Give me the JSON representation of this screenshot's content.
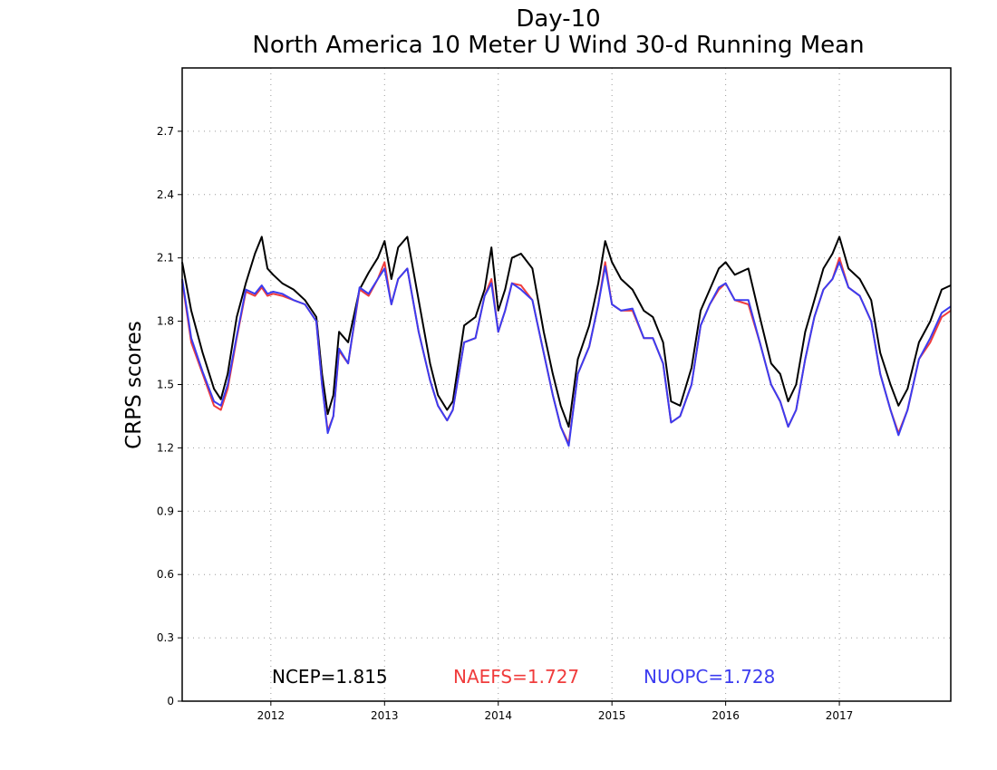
{
  "chart_data": {
    "type": "line",
    "title": "Day-10",
    "subtitle": "North America 10 Meter U Wind 30-d Running Mean",
    "xlabel": "",
    "ylabel": "CRPS scores",
    "xlim": [
      2011.22,
      2017.98
    ],
    "ylim": [
      0,
      3.0
    ],
    "y_ticks": [
      "0",
      "0.3",
      "0.6",
      "0.9",
      "1.2",
      "1.5",
      "1.8",
      "2.1",
      "2.4",
      "2.7"
    ],
    "x_ticks": [
      "2012",
      "2013",
      "2014",
      "2015",
      "2016",
      "2017"
    ],
    "grid": true,
    "legend_placement": "bottom-center",
    "x": [
      2011.22,
      2011.3,
      2011.4,
      2011.5,
      2011.56,
      2011.62,
      2011.7,
      2011.78,
      2011.86,
      2011.92,
      2011.97,
      2012.02,
      2012.1,
      2012.2,
      2012.3,
      2012.4,
      2012.45,
      2012.5,
      2012.55,
      2012.6,
      2012.68,
      2012.78,
      2012.86,
      2012.94,
      2013.0,
      2013.06,
      2013.12,
      2013.2,
      2013.3,
      2013.4,
      2013.47,
      2013.55,
      2013.6,
      2013.7,
      2013.8,
      2013.88,
      2013.94,
      2014.0,
      2014.06,
      2014.12,
      2014.2,
      2014.3,
      2014.4,
      2014.48,
      2014.55,
      2014.62,
      2014.7,
      2014.8,
      2014.88,
      2014.94,
      2015.0,
      2015.08,
      2015.18,
      2015.28,
      2015.36,
      2015.45,
      2015.52,
      2015.6,
      2015.7,
      2015.78,
      2015.86,
      2015.94,
      2016.0,
      2016.08,
      2016.2,
      2016.3,
      2016.4,
      2016.48,
      2016.55,
      2016.62,
      2016.7,
      2016.78,
      2016.86,
      2016.94,
      2017.0,
      2017.08,
      2017.18,
      2017.28,
      2017.36,
      2017.45,
      2017.52,
      2017.6,
      2017.7,
      2017.8,
      2017.9,
      2017.98
    ],
    "series": [
      {
        "name": "NCEP",
        "color": "#000000",
        "values": [
          2.08,
          1.85,
          1.65,
          1.48,
          1.43,
          1.55,
          1.82,
          1.98,
          2.12,
          2.2,
          2.05,
          2.02,
          1.98,
          1.95,
          1.9,
          1.82,
          1.55,
          1.36,
          1.45,
          1.75,
          1.7,
          1.95,
          2.03,
          2.1,
          2.18,
          2.0,
          2.15,
          2.2,
          1.9,
          1.6,
          1.45,
          1.38,
          1.42,
          1.78,
          1.82,
          1.95,
          2.15,
          1.85,
          1.95,
          2.1,
          2.12,
          2.05,
          1.75,
          1.55,
          1.4,
          1.3,
          1.62,
          1.78,
          1.98,
          2.18,
          2.08,
          2.0,
          1.95,
          1.85,
          1.82,
          1.7,
          1.42,
          1.4,
          1.58,
          1.85,
          1.95,
          2.05,
          2.08,
          2.02,
          2.05,
          1.82,
          1.6,
          1.55,
          1.42,
          1.5,
          1.75,
          1.9,
          2.05,
          2.12,
          2.2,
          2.05,
          2.0,
          1.9,
          1.65,
          1.5,
          1.4,
          1.48,
          1.7,
          1.8,
          1.95,
          1.97
        ]
      },
      {
        "name": "NAEFS",
        "color": "#f03c3c",
        "values": [
          1.99,
          1.7,
          1.55,
          1.4,
          1.38,
          1.48,
          1.72,
          1.94,
          1.92,
          1.96,
          1.92,
          1.93,
          1.92,
          1.9,
          1.88,
          1.8,
          1.5,
          1.28,
          1.35,
          1.66,
          1.6,
          1.95,
          1.92,
          2.0,
          2.08,
          1.88,
          2.0,
          2.05,
          1.75,
          1.52,
          1.4,
          1.33,
          1.38,
          1.7,
          1.72,
          1.92,
          2.0,
          1.75,
          1.85,
          1.98,
          1.97,
          1.9,
          1.65,
          1.45,
          1.3,
          1.22,
          1.55,
          1.68,
          1.88,
          2.08,
          1.88,
          1.85,
          1.85,
          1.72,
          1.72,
          1.6,
          1.32,
          1.35,
          1.5,
          1.78,
          1.88,
          1.95,
          1.98,
          1.9,
          1.88,
          1.7,
          1.5,
          1.42,
          1.3,
          1.38,
          1.62,
          1.82,
          1.95,
          2.0,
          2.1,
          1.96,
          1.92,
          1.8,
          1.55,
          1.38,
          1.27,
          1.38,
          1.62,
          1.7,
          1.82,
          1.85
        ]
      },
      {
        "name": "NUOPC",
        "color": "#3c3cf0",
        "values": [
          2.0,
          1.72,
          1.56,
          1.42,
          1.4,
          1.5,
          1.73,
          1.95,
          1.93,
          1.97,
          1.93,
          1.94,
          1.93,
          1.9,
          1.88,
          1.8,
          1.5,
          1.27,
          1.35,
          1.67,
          1.6,
          1.96,
          1.93,
          2.0,
          2.05,
          1.88,
          2.0,
          2.05,
          1.75,
          1.52,
          1.4,
          1.33,
          1.38,
          1.7,
          1.72,
          1.92,
          1.98,
          1.75,
          1.85,
          1.98,
          1.95,
          1.9,
          1.65,
          1.45,
          1.3,
          1.21,
          1.55,
          1.68,
          1.88,
          2.06,
          1.88,
          1.85,
          1.86,
          1.72,
          1.72,
          1.6,
          1.32,
          1.35,
          1.5,
          1.78,
          1.88,
          1.96,
          1.98,
          1.9,
          1.9,
          1.7,
          1.5,
          1.42,
          1.3,
          1.38,
          1.62,
          1.82,
          1.95,
          2.0,
          2.08,
          1.96,
          1.92,
          1.8,
          1.55,
          1.38,
          1.26,
          1.38,
          1.62,
          1.72,
          1.84,
          1.87
        ]
      }
    ],
    "legend": [
      {
        "label": "NCEP=1.815",
        "color": "#000000"
      },
      {
        "label": "NAEFS=1.727",
        "color": "#f03c3c"
      },
      {
        "label": "NUOPC=1.728",
        "color": "#3c3cf0"
      }
    ]
  }
}
